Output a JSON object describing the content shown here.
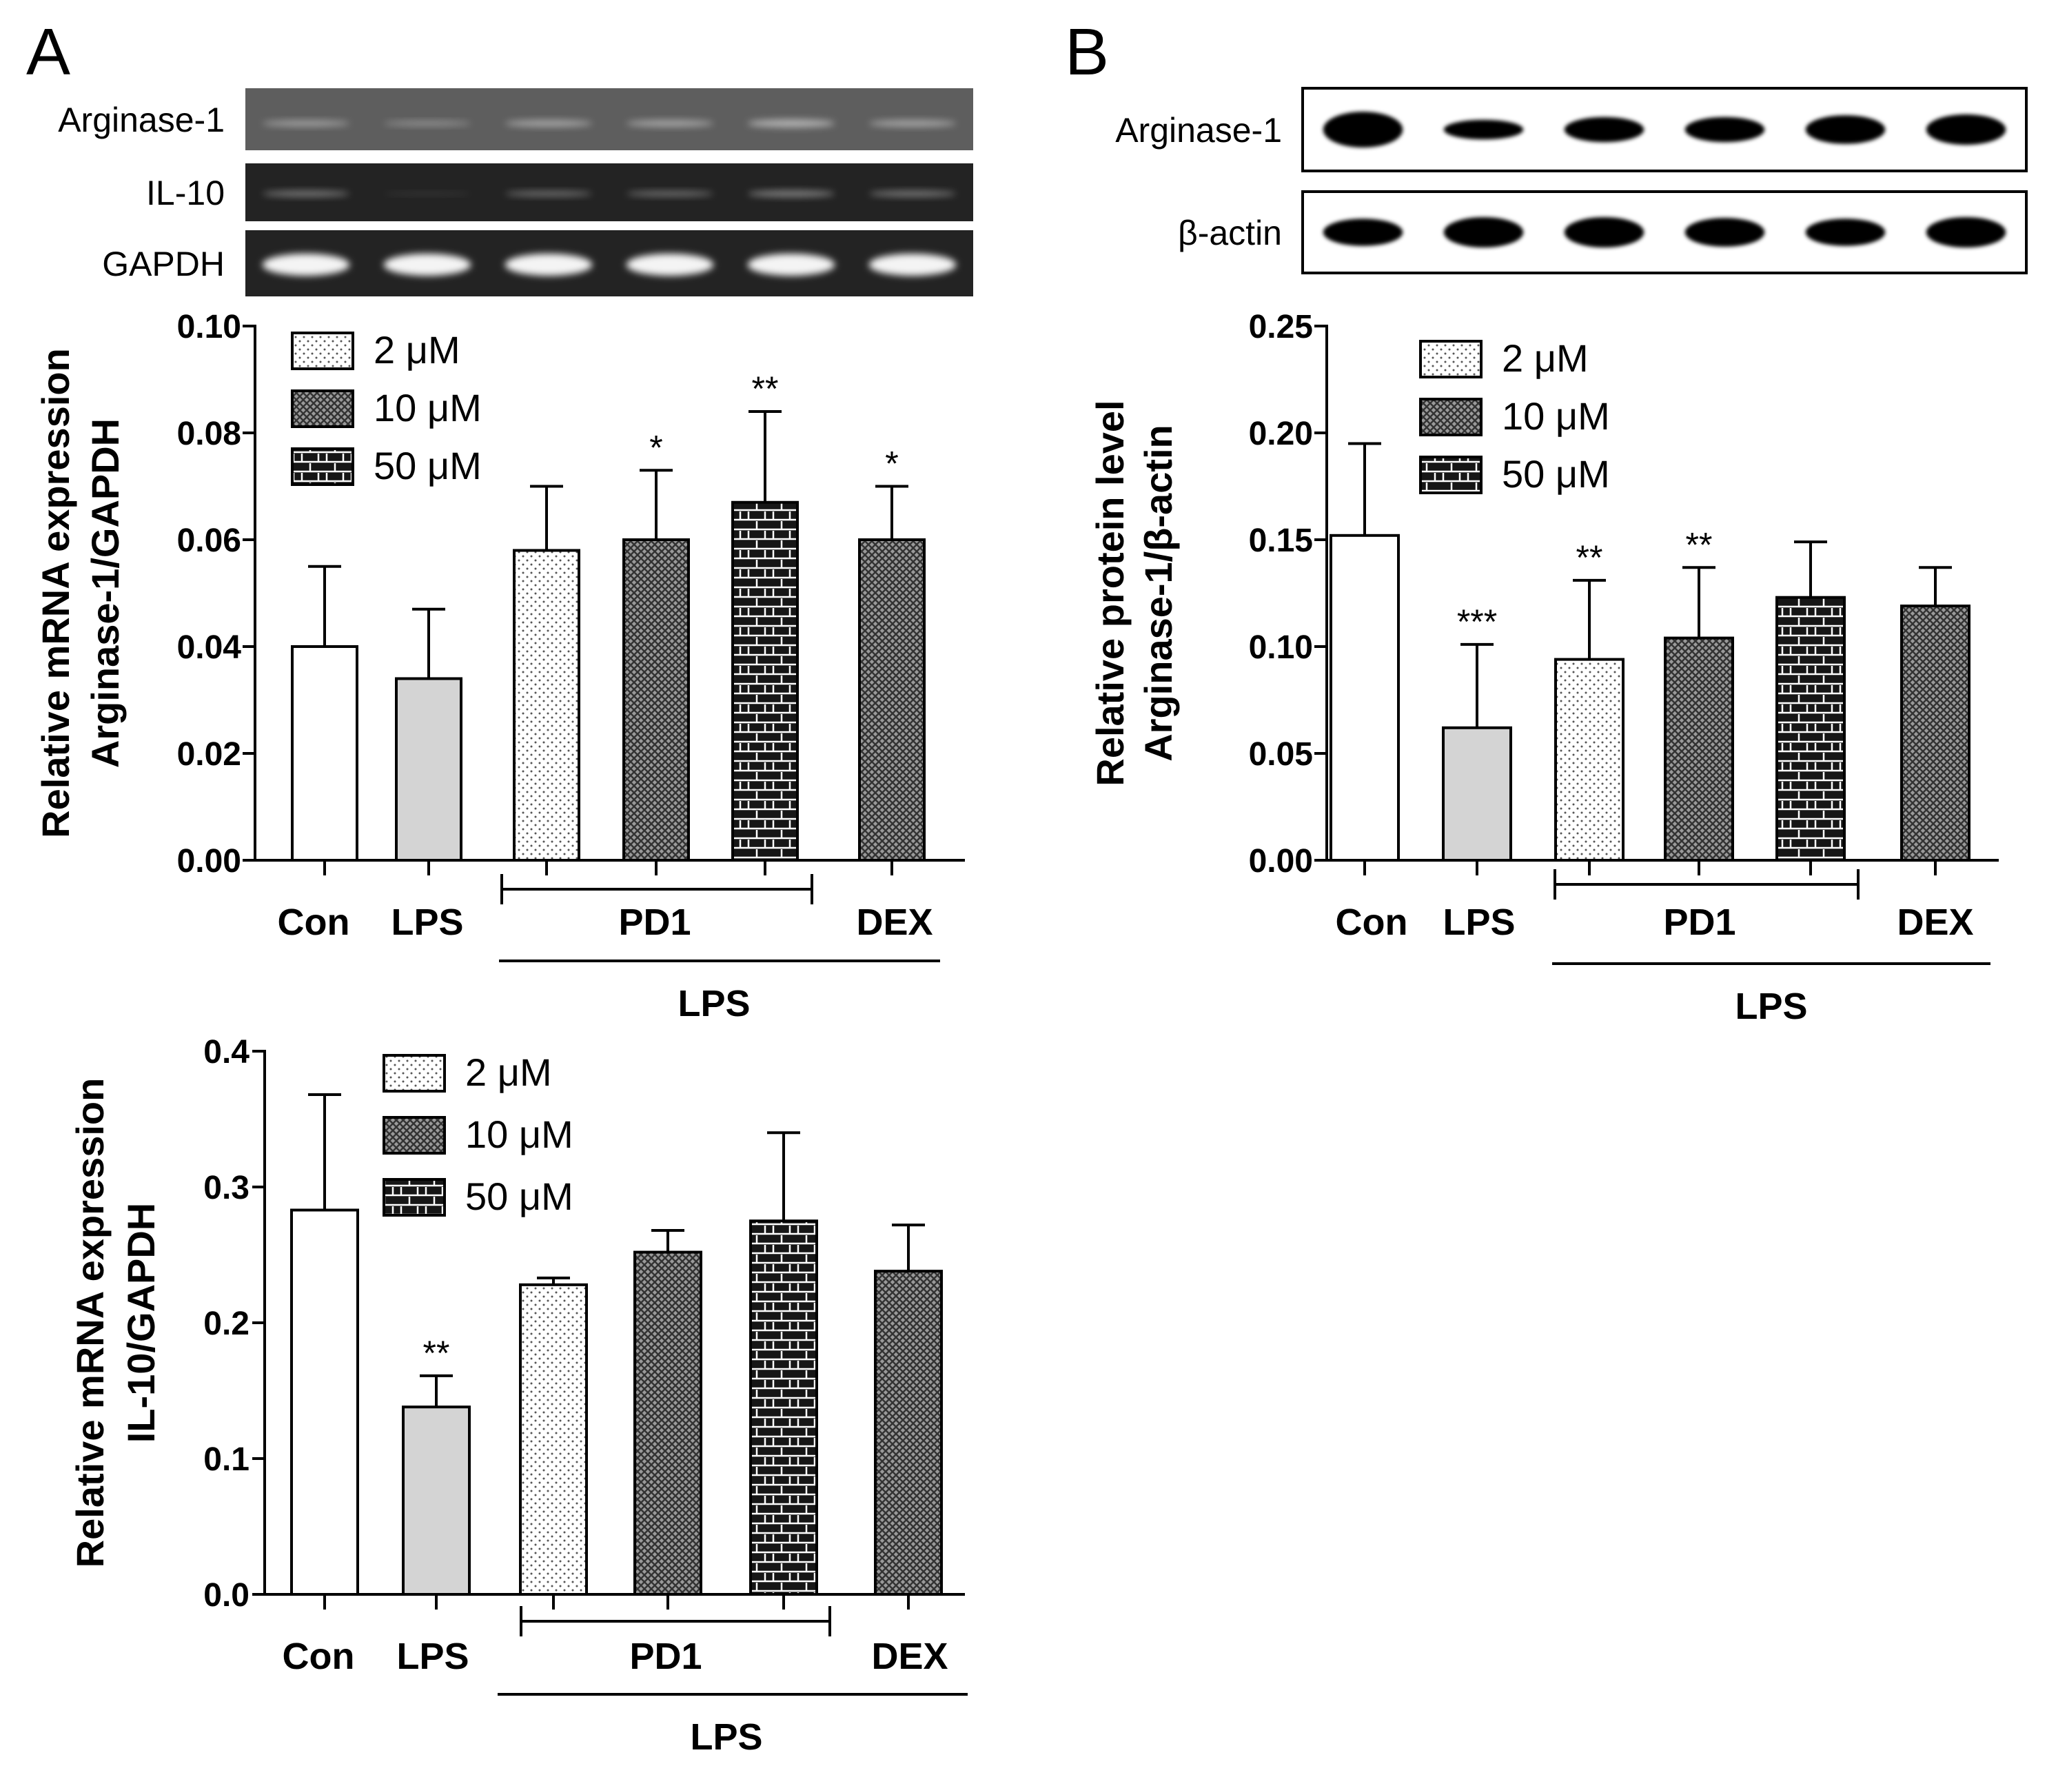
{
  "panels": {
    "A": {
      "letter": "A"
    },
    "B": {
      "letter": "B"
    }
  },
  "gels": {
    "A": {
      "rows": [
        {
          "label": "Arginase-1",
          "bands": [
            0.55,
            0.45,
            0.6,
            0.6,
            0.7,
            0.6
          ]
        },
        {
          "label": "IL-10",
          "bands": [
            0.55,
            0.1,
            0.5,
            0.5,
            0.6,
            0.55
          ]
        },
        {
          "label": "GAPDH",
          "bands": [
            1.0,
            1.0,
            1.0,
            1.0,
            1.0,
            1.0
          ]
        }
      ]
    },
    "B": {
      "rows": [
        {
          "label": "Arginase-1",
          "bands": [
            1.0,
            0.55,
            0.7,
            0.7,
            0.8,
            0.85
          ]
        },
        {
          "label": "β-actin",
          "bands": [
            0.9,
            1.0,
            1.0,
            0.95,
            0.9,
            1.0
          ]
        }
      ]
    }
  },
  "legend": {
    "items": [
      {
        "label": "2 μM",
        "pattern": "dots"
      },
      {
        "label": "10 μM",
        "pattern": "cross"
      },
      {
        "label": "50 μM",
        "pattern": "brick"
      }
    ]
  },
  "chart_data": [
    {
      "id": "A-arginase",
      "type": "bar",
      "ylabel_lines": [
        "Relative mRNA expression",
        "Arginase-1/GAPDH"
      ],
      "ylim": [
        0,
        0.1
      ],
      "yticks": [
        "0.00",
        "0.02",
        "0.04",
        "0.06",
        "0.08",
        "0.10"
      ],
      "categories": [
        "Con",
        "LPS",
        "PD1 2 μM",
        "PD1 10 μM",
        "PD1 50 μM",
        "DEX"
      ],
      "values": [
        0.04,
        0.034,
        0.058,
        0.06,
        0.067,
        0.06
      ],
      "errors": [
        0.015,
        0.013,
        0.012,
        0.013,
        0.017,
        0.01
      ],
      "significance": [
        "",
        "",
        "",
        "*",
        "**",
        "*"
      ],
      "x_labels": {
        "con": "Con",
        "lps": "LPS",
        "pd1": "PD1",
        "dex": "DEX",
        "group": "LPS"
      }
    },
    {
      "id": "A-il10",
      "type": "bar",
      "ylabel_lines": [
        "Relative mRNA expression",
        "IL-10/GAPDH"
      ],
      "ylim": [
        0,
        0.4
      ],
      "yticks": [
        "0.0",
        "0.1",
        "0.2",
        "0.3",
        "0.4"
      ],
      "categories": [
        "Con",
        "LPS",
        "PD1 2 μM",
        "PD1 10 μM",
        "PD1 50 μM",
        "DEX"
      ],
      "values": [
        0.283,
        0.138,
        0.228,
        0.252,
        0.275,
        0.238
      ],
      "errors": [
        0.085,
        0.023,
        0.005,
        0.016,
        0.065,
        0.034
      ],
      "significance": [
        "",
        "**",
        "",
        "",
        "",
        ""
      ],
      "x_labels": {
        "con": "Con",
        "lps": "LPS",
        "pd1": "PD1",
        "dex": "DEX",
        "group": "LPS"
      }
    },
    {
      "id": "B-arginase",
      "type": "bar",
      "ylabel_lines": [
        "Relative protein level",
        "Arginase-1/β-actin"
      ],
      "ylim": [
        0,
        0.25
      ],
      "yticks": [
        "0.00",
        "0.05",
        "0.10",
        "0.15",
        "0.20",
        "0.25"
      ],
      "categories": [
        "Con",
        "LPS",
        "PD1 2 μM",
        "PD1 10 μM",
        "PD1 50 μM",
        "DEX"
      ],
      "values": [
        0.152,
        0.062,
        0.094,
        0.104,
        0.123,
        0.119
      ],
      "errors": [
        0.043,
        0.039,
        0.037,
        0.033,
        0.026,
        0.018
      ],
      "significance": [
        "",
        "***",
        "**",
        "**",
        "",
        ""
      ],
      "x_labels": {
        "con": "Con",
        "lps": "LPS",
        "pd1": "PD1",
        "dex": "DEX",
        "group": "LPS"
      }
    }
  ]
}
